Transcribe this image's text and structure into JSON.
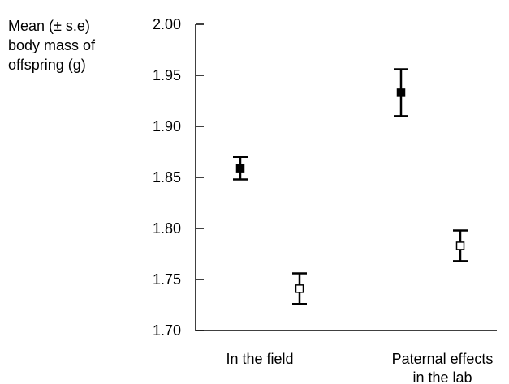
{
  "chart_data": {
    "type": "scatter",
    "subtype": "dot-plot-with-error-bars",
    "ylabel_lines": [
      "Mean (± s.e)",
      "body mass of",
      "offspring (g)"
    ],
    "xlabel": "",
    "title": "",
    "ylim": [
      1.7,
      2.0
    ],
    "yticks": [
      "2.00",
      "1.95",
      "1.90",
      "1.85",
      "1.80",
      "1.75",
      "1.70"
    ],
    "categories": [
      {
        "lines": [
          "In the field"
        ]
      },
      {
        "lines": [
          "Paternal effects",
          "in the lab"
        ]
      }
    ],
    "series": [
      {
        "marker": "filled-square",
        "values": [
          1.859,
          1.933
        ],
        "se": [
          0.011,
          0.023
        ]
      },
      {
        "marker": "open-square",
        "values": [
          1.741,
          1.783
        ],
        "se": [
          0.015,
          0.015
        ]
      }
    ],
    "grid": false,
    "legend": "none"
  }
}
